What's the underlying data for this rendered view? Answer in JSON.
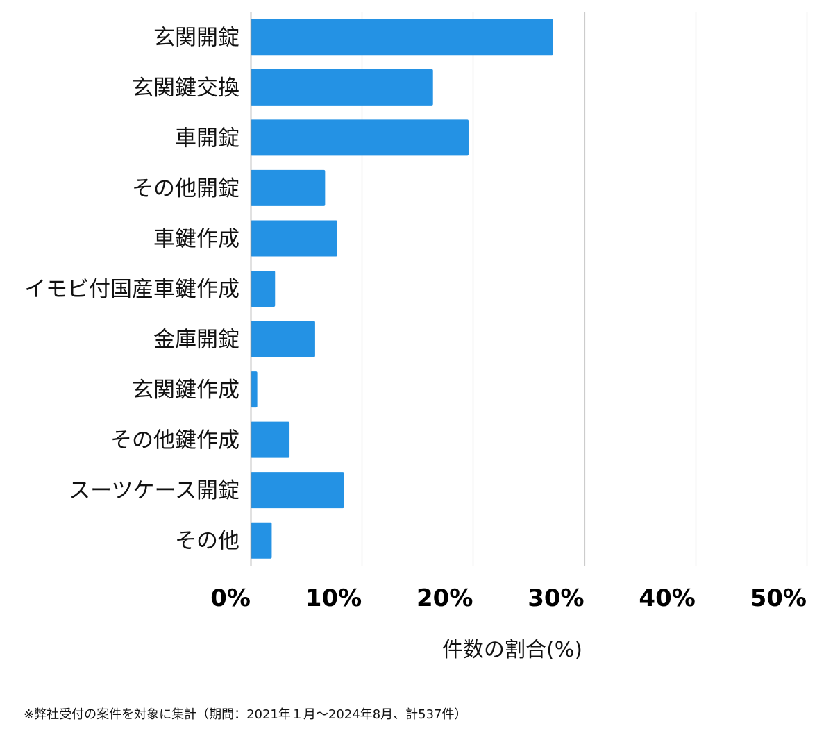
{
  "chart_data": {
    "type": "bar",
    "orientation": "horizontal",
    "categories": [
      "玄関開錠",
      "玄関鍵交換",
      "車開錠",
      "その他開錠",
      "車鍵作成",
      "イモビ付国産車鍵作成",
      "金庫開錠",
      "玄関鍵作成",
      "その他鍵作成",
      "スーツケース開錠",
      "その他"
    ],
    "values": [
      27.2,
      16.4,
      19.6,
      6.7,
      7.8,
      2.2,
      5.8,
      0.6,
      3.5,
      8.4,
      1.9
    ],
    "xlim": [
      0,
      50
    ],
    "ticks": [
      0,
      10,
      20,
      30,
      40,
      50
    ],
    "tick_labels": [
      "0%",
      "10%",
      "20%",
      "30%",
      "40%",
      "50%"
    ],
    "xlabel": "件数の割合(%)",
    "ylabel": "",
    "grid": true,
    "bar_color": "#2492e4",
    "grid_color": "#cccccc",
    "axis_color": "#888888"
  },
  "footnote": "※弊社受付の案件を対象に集計（期間：2021年１月〜2024年8月、計537件）"
}
